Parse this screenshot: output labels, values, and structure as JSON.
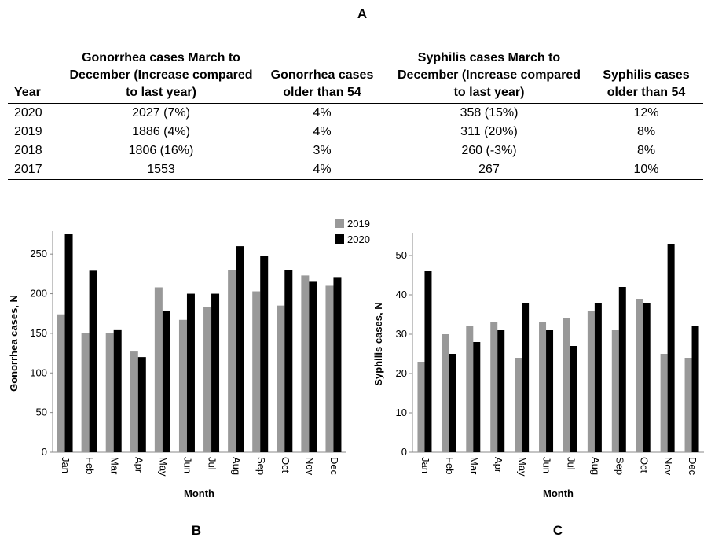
{
  "panel_labels": {
    "a": "A",
    "b": "B",
    "c": "C"
  },
  "table": {
    "headers": [
      "Year",
      "Gonorrhea cases March to December (Increase compared to last year)",
      "Gonorrhea cases older than 54",
      "Syphilis cases March to December (Increase compared to last year)",
      "Syphilis cases older than 54"
    ],
    "rows": [
      [
        "2020",
        "2027 (7%)",
        "4%",
        "358 (15%)",
        "12%"
      ],
      [
        "2019",
        "1886 (4%)",
        "4%",
        "311 (20%)",
        "8%"
      ],
      [
        "2018",
        "1806 (16%)",
        "3%",
        "260 (-3%)",
        "8%"
      ],
      [
        "2017",
        "1553",
        "4%",
        "267",
        "10%"
      ]
    ]
  },
  "colors": {
    "series_2019": "#999999",
    "series_2020": "#000000",
    "axis": "#888888"
  },
  "chart_data": [
    {
      "type": "bar",
      "categories": [
        "Jan",
        "Feb",
        "Mar",
        "Apr",
        "May",
        "Jun",
        "Jul",
        "Aug",
        "Sep",
        "Oct",
        "Nov",
        "Dec"
      ],
      "series": [
        {
          "name": "2019",
          "values": [
            174,
            150,
            150,
            127,
            208,
            167,
            183,
            230,
            203,
            185,
            223,
            210
          ]
        },
        {
          "name": "2020",
          "values": [
            275,
            229,
            154,
            120,
            178,
            200,
            200,
            260,
            248,
            230,
            216,
            221
          ]
        }
      ],
      "xlabel": "Month",
      "ylabel": "Gonorrhea cases, N",
      "ylim": [
        0,
        275
      ],
      "yticks": [
        0,
        50,
        100,
        150,
        200,
        250
      ],
      "legend": "top-right",
      "grid": false
    },
    {
      "type": "bar",
      "categories": [
        "Jan",
        "Feb",
        "Mar",
        "Apr",
        "May",
        "Jun",
        "Jul",
        "Aug",
        "Sep",
        "Oct",
        "Nov",
        "Dec"
      ],
      "series": [
        {
          "name": "2019",
          "values": [
            23,
            30,
            32,
            33,
            24,
            33,
            34,
            36,
            31,
            39,
            25,
            24
          ]
        },
        {
          "name": "2020",
          "values": [
            46,
            25,
            28,
            31,
            38,
            31,
            27,
            38,
            42,
            38,
            53,
            32
          ]
        }
      ],
      "xlabel": "Month",
      "ylabel": "Syphilis cases, N",
      "ylim": [
        0,
        55
      ],
      "yticks": [
        0,
        10,
        20,
        30,
        40,
        50
      ],
      "grid": false
    }
  ]
}
